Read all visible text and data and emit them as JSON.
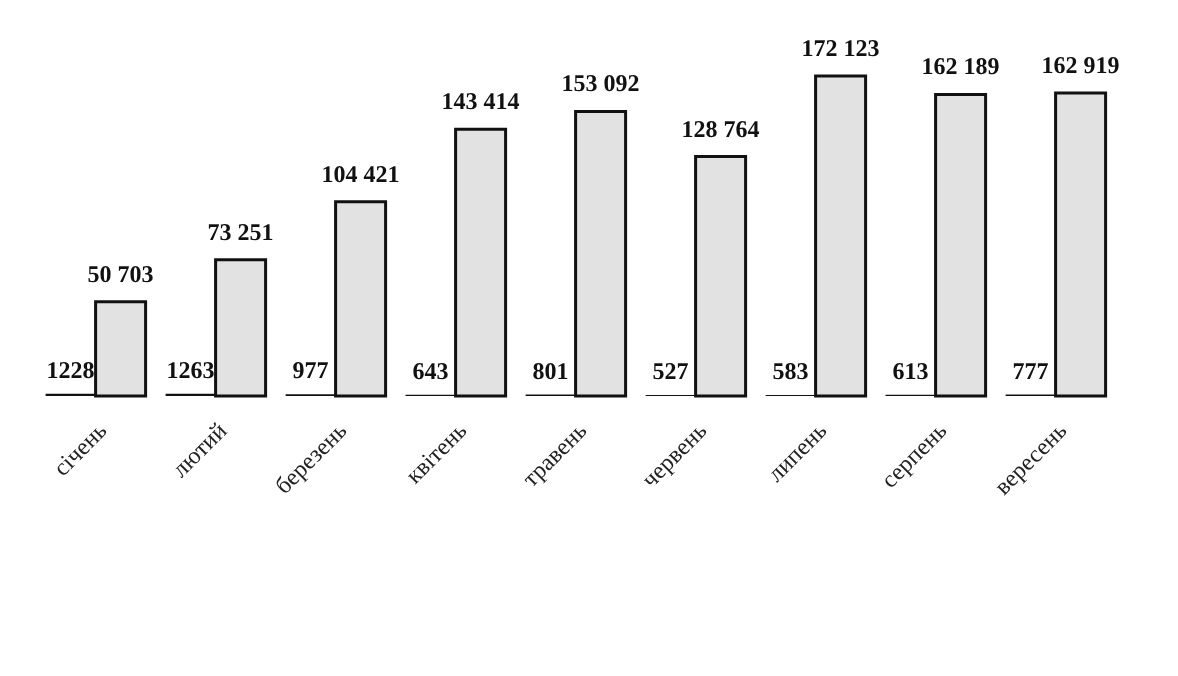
{
  "chart_data": {
    "type": "bar",
    "categories": [
      "січень",
      "лютий",
      "березень",
      "квітень",
      "травень",
      "червень",
      "липень",
      "серпень",
      "вересень"
    ],
    "series": [
      {
        "color": "#111111",
        "values": [
          1228,
          1263,
          977,
          643,
          801,
          527,
          583,
          613,
          777
        ],
        "value_labels": [
          "1228",
          "1263",
          "977",
          "643",
          "801",
          "527",
          "583",
          "613",
          "777"
        ]
      },
      {
        "color": "#e2e2e2",
        "values": [
          50703,
          73251,
          104421,
          143414,
          153092,
          128764,
          172123,
          162189,
          162919
        ],
        "value_labels": [
          "50 703",
          "73 251",
          "104 421",
          "143 414",
          "153 092",
          "128 764",
          "172 123",
          "162 189",
          "162 919"
        ]
      }
    ],
    "grid": false,
    "legend": false
  }
}
